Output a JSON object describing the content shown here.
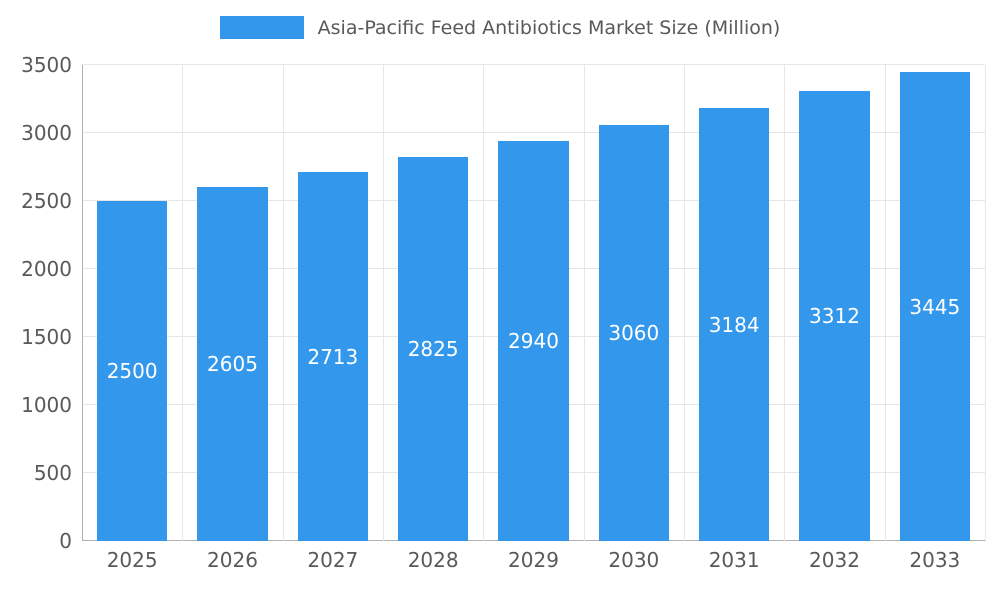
{
  "chart_data": {
    "type": "bar",
    "title": "Asia-Pacific Feed Antibiotics Market Size (Million)",
    "categories": [
      "2025",
      "2026",
      "2027",
      "2028",
      "2029",
      "2030",
      "2031",
      "2032",
      "2033"
    ],
    "values": [
      2500,
      2605,
      2713,
      2825,
      2940,
      3060,
      3184,
      3312,
      3445
    ],
    "xlabel": "",
    "ylabel": "",
    "ylim": [
      0,
      3500
    ],
    "ytick_step": 500,
    "grid": true,
    "legend_position": "top",
    "bar_color": "#3398EC",
    "value_label_color": "#ffffff",
    "axis_text_color": "#595959"
  },
  "legend": {
    "label": "Asia-Pacific Feed Antibiotics Market Size (Million)"
  }
}
